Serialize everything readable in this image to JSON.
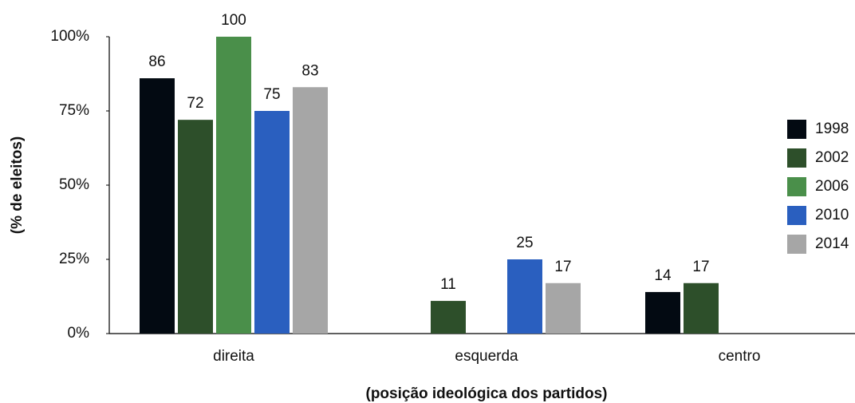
{
  "chart_data": {
    "type": "bar",
    "categories": [
      "direita",
      "esquerda",
      "centro"
    ],
    "series": [
      {
        "name": "1998",
        "color": "#030a12",
        "values": [
          86,
          null,
          14
        ]
      },
      {
        "name": "2002",
        "color": "#2d4f2a",
        "values": [
          72,
          11,
          17
        ]
      },
      {
        "name": "2006",
        "color": "#4a8f4a",
        "values": [
          100,
          null,
          null
        ]
      },
      {
        "name": "2010",
        "color": "#2a5fbf",
        "values": [
          75,
          25,
          null
        ]
      },
      {
        "name": "2014",
        "color": "#a6a6a6",
        "values": [
          83,
          17,
          null
        ]
      }
    ],
    "ylim": [
      0,
      100
    ],
    "yticks": [
      {
        "value": 0,
        "label": "0%"
      },
      {
        "value": 25,
        "label": "25%"
      },
      {
        "value": 50,
        "label": "50%"
      },
      {
        "value": 75,
        "label": "75%"
      },
      {
        "value": 100,
        "label": "100%"
      }
    ],
    "y_label": "(% de eleitos)",
    "x_label": "(posição ideológica dos partidos)",
    "legend": "right",
    "grid": false
  }
}
